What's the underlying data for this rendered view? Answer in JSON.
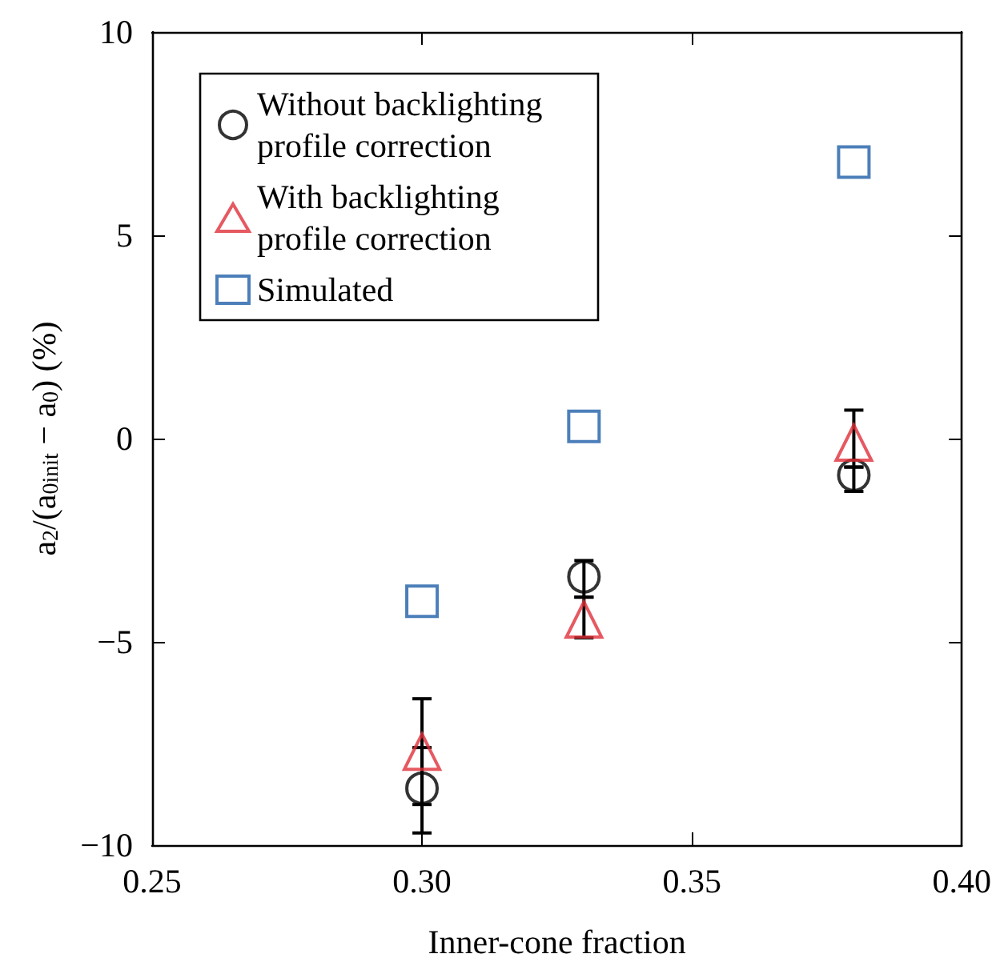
{
  "chart_data": {
    "type": "scatter",
    "xlabel": "Inner-cone fraction",
    "ylabel": "a$_{2}$/(a$_{0init}$ − a$_{0}$) (%)",
    "x": [
      0.3,
      0.33,
      0.38
    ],
    "series": [
      {
        "name": "Without backlighting profile correction",
        "color": "#000000",
        "marker": "circle",
        "values": [
          -8.6,
          -3.4,
          -0.9
        ],
        "errors": [
          [
            -9.7,
            -7.6
          ],
          [
            -3.9,
            -3.0
          ],
          [
            -1.3,
            -0.7
          ]
        ]
      },
      {
        "name": "With backlighting profile correction",
        "color": "#e0303a",
        "marker": "triangle",
        "values": [
          -7.7,
          -4.45,
          -0.1
        ],
        "errors": [
          [
            -9.0,
            -6.4
          ],
          [
            -4.9,
            -3.9
          ],
          [
            -0.7,
            0.7
          ]
        ]
      },
      {
        "name": "Simulated",
        "color": "#1f5fa8",
        "marker": "square",
        "values": [
          -4.0,
          0.3,
          6.8
        ]
      }
    ],
    "xlim": [
      0.25,
      0.4
    ],
    "xticks": [
      {
        "value": 0.25,
        "label": "0.25"
      },
      {
        "value": 0.3,
        "label": "0.30"
      },
      {
        "value": 0.35,
        "label": "0.35"
      },
      {
        "value": 0.4,
        "label": "0.40"
      }
    ],
    "ylim": [
      -10,
      10
    ],
    "yticks": [
      -10,
      -5,
      0,
      5,
      10
    ],
    "grid": false,
    "legend": "top left"
  }
}
